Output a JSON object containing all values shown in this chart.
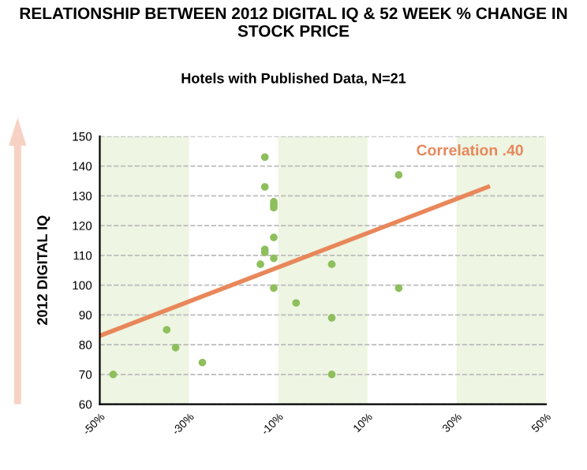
{
  "chart_data": {
    "type": "scatter",
    "title": "RELATIONSHIP BETWEEN 2012 DIGITAL IQ & 52 WEEK % CHANGE IN STOCK PRICE",
    "subtitle": "Hotels with Published Data, N=21",
    "ylabel": "2012 DIGITAL IQ",
    "annotations": [
      "Correlation .40"
    ],
    "series": [
      {
        "color": "#8dbf5c",
        "x": [
          -47,
          -35,
          -33,
          -27,
          -14,
          -13,
          -13,
          -13,
          -13,
          -11,
          -11,
          -11,
          -11,
          -11,
          -11,
          -6,
          2,
          2,
          2,
          17,
          17
        ],
        "values": [
          70,
          85,
          79,
          74,
          107,
          112,
          111,
          143,
          133,
          128,
          127,
          126,
          116,
          109,
          99,
          94,
          107,
          89,
          70,
          137,
          99
        ]
      },
      {
        "type": "line",
        "color": "#e8875a",
        "x": [
          -50,
          37
        ],
        "values": [
          83,
          133
        ],
        "marker": "none"
      }
    ],
    "marker": "circle",
    "xlim": [
      -50,
      50
    ],
    "ylim": [
      60,
      150
    ],
    "xticks": [
      {
        "value": -50,
        "label": "-50%"
      },
      {
        "value": -30,
        "label": "-30%"
      },
      {
        "value": -10,
        "label": "-10%"
      },
      {
        "value": 10,
        "label": "10%"
      },
      {
        "value": 30,
        "label": "30%"
      },
      {
        "value": 50,
        "label": "50%"
      }
    ],
    "yticks": [
      60,
      70,
      80,
      90,
      100,
      110,
      120,
      130,
      140,
      150
    ],
    "grid": "y",
    "bands": [
      {
        "axis": "x",
        "from": -50,
        "to": -30,
        "color": "#eef5e2"
      },
      {
        "axis": "x",
        "from": -10,
        "to": 10,
        "color": "#eef5e2"
      },
      {
        "axis": "x",
        "from": 30,
        "to": 50,
        "color": "#eef5e2"
      }
    ]
  }
}
